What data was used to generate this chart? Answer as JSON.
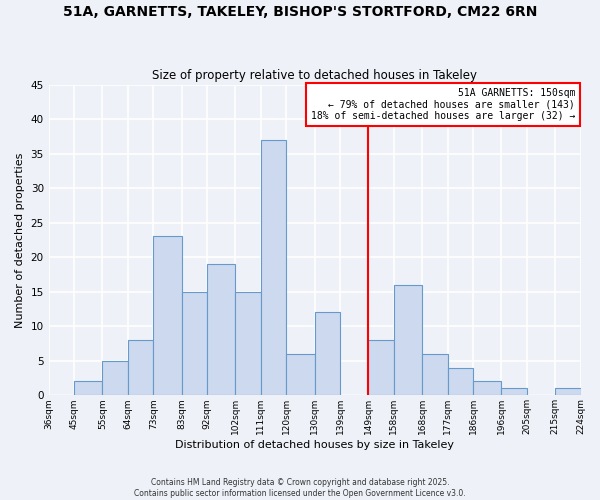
{
  "title_line1": "51A, GARNETTS, TAKELEY, BISHOP'S STORTFORD, CM22 6RN",
  "title_line2": "Size of property relative to detached houses in Takeley",
  "xlabel": "Distribution of detached houses by size in Takeley",
  "ylabel": "Number of detached properties",
  "bin_edges": [
    36,
    45,
    55,
    64,
    73,
    83,
    92,
    102,
    111,
    120,
    130,
    139,
    149,
    158,
    168,
    177,
    186,
    196,
    205,
    215,
    224
  ],
  "bar_heights": [
    0,
    2,
    5,
    8,
    23,
    15,
    19,
    15,
    37,
    6,
    12,
    0,
    8,
    16,
    6,
    4,
    2,
    1,
    0,
    1
  ],
  "bar_color": "#ccd9ee",
  "bar_edge_color": "#6699cc",
  "reference_line_x": 149,
  "reference_line_color": "red",
  "annotation_box_text": "51A GARNETTS: 150sqm\n← 79% of detached houses are smaller (143)\n18% of semi-detached houses are larger (32) →",
  "ylim": [
    0,
    45
  ],
  "yticks": [
    0,
    5,
    10,
    15,
    20,
    25,
    30,
    35,
    40,
    45
  ],
  "background_color": "#eef2f8",
  "grid_color": "#ffffff",
  "footer_line1": "Contains HM Land Registry data © Crown copyright and database right 2025.",
  "footer_line2": "Contains public sector information licensed under the Open Government Licence v3.0.",
  "tick_labels": [
    "36sqm",
    "45sqm",
    "55sqm",
    "64sqm",
    "73sqm",
    "83sqm",
    "92sqm",
    "102sqm",
    "111sqm",
    "120sqm",
    "130sqm",
    "139sqm",
    "149sqm",
    "158sqm",
    "168sqm",
    "177sqm",
    "186sqm",
    "196sqm",
    "205sqm",
    "215sqm",
    "224sqm"
  ]
}
